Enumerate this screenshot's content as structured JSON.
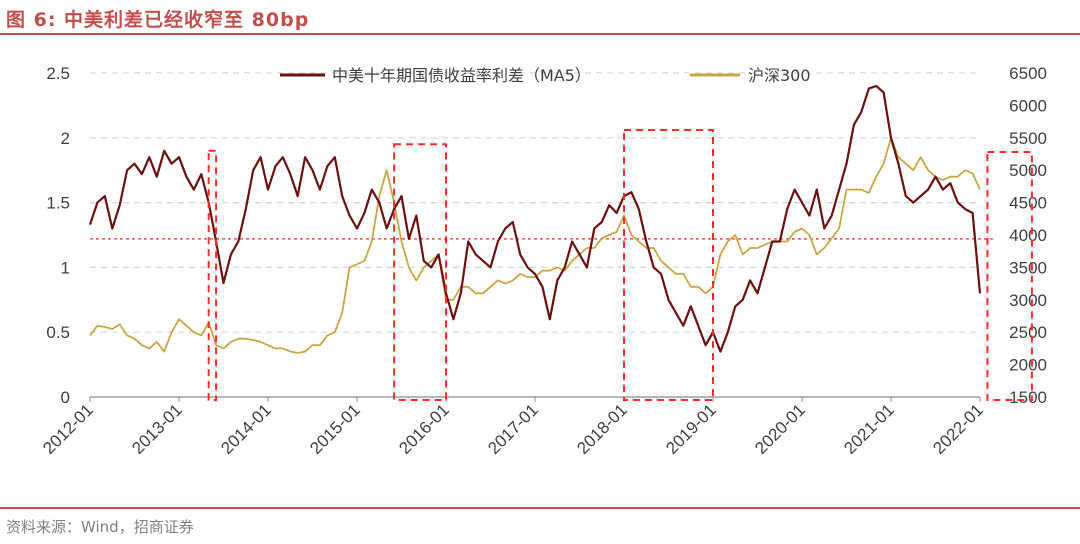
{
  "title": "图 6:  中美利差已经收窄至 80bp",
  "source": "资料来源：Wind，招商证券",
  "colors": {
    "spread": "#6b0f0f",
    "csi300": "#c9a645",
    "accent": "#c0504d",
    "guide": "#ff2a2a"
  },
  "chart_data": {
    "type": "line",
    "x_ticks": [
      "2012-01",
      "2013-01",
      "2014-01",
      "2015-01",
      "2016-01",
      "2017-01",
      "2018-01",
      "2019-01",
      "2020-01",
      "2021-01",
      "2022-01"
    ],
    "xlim": [
      "2012-01",
      "2022-01"
    ],
    "y_left": {
      "lim": [
        0,
        2.5
      ],
      "ticks": [
        "0",
        "0.5",
        "1",
        "1.5",
        "2",
        "2.5"
      ]
    },
    "y_right": {
      "lim": [
        1500,
        6500
      ],
      "ticks": [
        "1500",
        "2000",
        "2500",
        "3000",
        "3500",
        "4000",
        "4500",
        "5000",
        "5500",
        "6000",
        "6500"
      ]
    },
    "grid": true,
    "legend_position": "top",
    "reference_line": {
      "axis": "left",
      "value": 1.22
    },
    "series": [
      {
        "name": "中美十年期国债收益率利差（MA5）",
        "axis": "left",
        "x": [
          "2012-01",
          "2012-02",
          "2012-03",
          "2012-04",
          "2012-05",
          "2012-06",
          "2012-07",
          "2012-08",
          "2012-09",
          "2012-10",
          "2012-11",
          "2012-12",
          "2013-01",
          "2013-02",
          "2013-03",
          "2013-04",
          "2013-05",
          "2013-06",
          "2013-07",
          "2013-08",
          "2013-09",
          "2013-10",
          "2013-11",
          "2013-12",
          "2014-01",
          "2014-02",
          "2014-03",
          "2014-04",
          "2014-05",
          "2014-06",
          "2014-07",
          "2014-08",
          "2014-09",
          "2014-10",
          "2014-11",
          "2014-12",
          "2015-01",
          "2015-02",
          "2015-03",
          "2015-04",
          "2015-05",
          "2015-06",
          "2015-07",
          "2015-08",
          "2015-09",
          "2015-10",
          "2015-11",
          "2015-12",
          "2016-01",
          "2016-02",
          "2016-03",
          "2016-04",
          "2016-05",
          "2016-06",
          "2016-07",
          "2016-08",
          "2016-09",
          "2016-10",
          "2016-11",
          "2016-12",
          "2017-01",
          "2017-02",
          "2017-03",
          "2017-04",
          "2017-05",
          "2017-06",
          "2017-07",
          "2017-08",
          "2017-09",
          "2017-10",
          "2017-11",
          "2017-12",
          "2018-01",
          "2018-02",
          "2018-03",
          "2018-04",
          "2018-05",
          "2018-06",
          "2018-07",
          "2018-08",
          "2018-09",
          "2018-10",
          "2018-11",
          "2018-12",
          "2019-01",
          "2019-02",
          "2019-03",
          "2019-04",
          "2019-05",
          "2019-06",
          "2019-07",
          "2019-08",
          "2019-09",
          "2019-10",
          "2019-11",
          "2019-12",
          "2020-01",
          "2020-02",
          "2020-03",
          "2020-04",
          "2020-05",
          "2020-06",
          "2020-07",
          "2020-08",
          "2020-09",
          "2020-10",
          "2020-11",
          "2020-12",
          "2021-01",
          "2021-02",
          "2021-03",
          "2021-04",
          "2021-05",
          "2021-06",
          "2021-07",
          "2021-08",
          "2021-09",
          "2021-10",
          "2021-11",
          "2021-12",
          "2022-01"
        ],
        "values": [
          1.33,
          1.5,
          1.55,
          1.3,
          1.48,
          1.75,
          1.8,
          1.72,
          1.85,
          1.7,
          1.9,
          1.8,
          1.85,
          1.7,
          1.6,
          1.72,
          1.5,
          1.2,
          0.88,
          1.1,
          1.2,
          1.45,
          1.75,
          1.85,
          1.6,
          1.78,
          1.85,
          1.72,
          1.55,
          1.85,
          1.75,
          1.6,
          1.78,
          1.85,
          1.55,
          1.4,
          1.3,
          1.42,
          1.6,
          1.5,
          1.3,
          1.45,
          1.55,
          1.22,
          1.4,
          1.05,
          1.0,
          1.1,
          0.8,
          0.6,
          0.8,
          1.2,
          1.1,
          1.05,
          1.0,
          1.2,
          1.3,
          1.35,
          1.1,
          1.0,
          0.95,
          0.85,
          0.6,
          0.9,
          1.0,
          1.2,
          1.1,
          1.0,
          1.3,
          1.35,
          1.48,
          1.42,
          1.55,
          1.58,
          1.45,
          1.2,
          1.0,
          0.95,
          0.75,
          0.65,
          0.55,
          0.7,
          0.55,
          0.4,
          0.5,
          0.35,
          0.5,
          0.7,
          0.75,
          0.9,
          0.8,
          1.0,
          1.2,
          1.2,
          1.45,
          1.6,
          1.5,
          1.4,
          1.6,
          1.3,
          1.4,
          1.6,
          1.8,
          2.1,
          2.2,
          2.38,
          2.4,
          2.35,
          2.0,
          1.8,
          1.55,
          1.5,
          1.55,
          1.6,
          1.7,
          1.6,
          1.65,
          1.5,
          1.45,
          1.42,
          0.8
        ]
      },
      {
        "name": "沪深300",
        "axis": "right",
        "x": [
          "2012-01",
          "2012-02",
          "2012-03",
          "2012-04",
          "2012-05",
          "2012-06",
          "2012-07",
          "2012-08",
          "2012-09",
          "2012-10",
          "2012-11",
          "2012-12",
          "2013-01",
          "2013-02",
          "2013-03",
          "2013-04",
          "2013-05",
          "2013-06",
          "2013-07",
          "2013-08",
          "2013-09",
          "2013-10",
          "2013-11",
          "2013-12",
          "2014-01",
          "2014-02",
          "2014-03",
          "2014-04",
          "2014-05",
          "2014-06",
          "2014-07",
          "2014-08",
          "2014-09",
          "2014-10",
          "2014-11",
          "2014-12",
          "2015-01",
          "2015-02",
          "2015-03",
          "2015-04",
          "2015-05",
          "2015-06",
          "2015-07",
          "2015-08",
          "2015-09",
          "2015-10",
          "2015-11",
          "2015-12",
          "2016-01",
          "2016-02",
          "2016-03",
          "2016-04",
          "2016-05",
          "2016-06",
          "2016-07",
          "2016-08",
          "2016-09",
          "2016-10",
          "2016-11",
          "2016-12",
          "2017-01",
          "2017-02",
          "2017-03",
          "2017-04",
          "2017-05",
          "2017-06",
          "2017-07",
          "2017-08",
          "2017-09",
          "2017-10",
          "2017-11",
          "2017-12",
          "2018-01",
          "2018-02",
          "2018-03",
          "2018-04",
          "2018-05",
          "2018-06",
          "2018-07",
          "2018-08",
          "2018-09",
          "2018-10",
          "2018-11",
          "2018-12",
          "2019-01",
          "2019-02",
          "2019-03",
          "2019-04",
          "2019-05",
          "2019-06",
          "2019-07",
          "2019-08",
          "2019-09",
          "2019-10",
          "2019-11",
          "2019-12",
          "2020-01",
          "2020-02",
          "2020-03",
          "2020-04",
          "2020-05",
          "2020-06",
          "2020-07",
          "2020-08",
          "2020-09",
          "2020-10",
          "2020-11",
          "2020-12",
          "2021-01",
          "2021-02",
          "2021-03",
          "2021-04",
          "2021-05",
          "2021-06",
          "2021-07",
          "2021-08",
          "2021-09",
          "2021-10",
          "2021-11",
          "2021-12",
          "2022-01"
        ],
        "values": [
          2450,
          2600,
          2580,
          2550,
          2620,
          2450,
          2400,
          2300,
          2250,
          2350,
          2200,
          2500,
          2700,
          2600,
          2500,
          2450,
          2650,
          2300,
          2250,
          2350,
          2400,
          2400,
          2380,
          2350,
          2300,
          2250,
          2250,
          2200,
          2180,
          2200,
          2300,
          2300,
          2450,
          2500,
          2800,
          3500,
          3550,
          3600,
          3900,
          4600,
          5000,
          4500,
          3900,
          3500,
          3300,
          3500,
          3600,
          3700,
          3000,
          3000,
          3200,
          3200,
          3100,
          3100,
          3200,
          3300,
          3250,
          3300,
          3400,
          3350,
          3350,
          3450,
          3450,
          3500,
          3450,
          3600,
          3700,
          3800,
          3800,
          3950,
          4000,
          4050,
          4300,
          4000,
          3900,
          3800,
          3800,
          3600,
          3500,
          3400,
          3400,
          3200,
          3200,
          3100,
          3200,
          3700,
          3900,
          4000,
          3700,
          3800,
          3800,
          3850,
          3900,
          3900,
          3900,
          4050,
          4100,
          4000,
          3700,
          3800,
          3950,
          4100,
          4700,
          4700,
          4700,
          4650,
          4900,
          5100,
          5500,
          5200,
          5100,
          5000,
          5200,
          5000,
          4900,
          4850,
          4900,
          4900,
          5000,
          4950,
          4700
        ]
      }
    ],
    "highlight_ranges": [
      {
        "axis": "left",
        "x_start": "2013-05",
        "x_end": "2013-06",
        "y_start": 0,
        "y_end": 1.9
      },
      {
        "axis": "left",
        "x_start": "2015-06",
        "x_end": "2016-01",
        "y_start": 0,
        "y_end": 1.95
      },
      {
        "axis": "left",
        "x_start": "2018-01",
        "x_end": "2019-01",
        "y_start": 0,
        "y_end": 2.06
      },
      {
        "axis": "right",
        "x_start": "2022-02",
        "x_end": "2022-08",
        "y_start": 1500,
        "y_end": 5280
      }
    ]
  }
}
